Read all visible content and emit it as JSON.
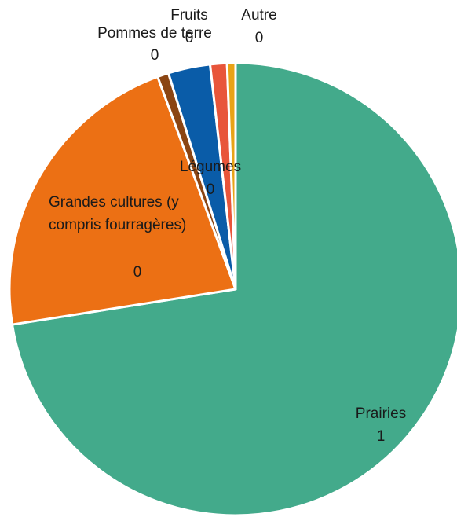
{
  "chart_data": {
    "type": "pie",
    "categories": [
      "Prairies",
      "Grandes cultures (y compris fourragères)",
      "Pommes de terre",
      "Légumes",
      "Fruits",
      "Autre"
    ],
    "values": [
      0.725,
      0.219,
      0.008,
      0.03,
      0.012,
      0.006
    ],
    "value_labels": [
      "1",
      "0",
      "0",
      "0",
      "0",
      "0"
    ],
    "colors": [
      "#43aa8b",
      "#ec7014",
      "#8b4513",
      "#0a5ca8",
      "#e8553a",
      "#e8a317"
    ]
  }
}
